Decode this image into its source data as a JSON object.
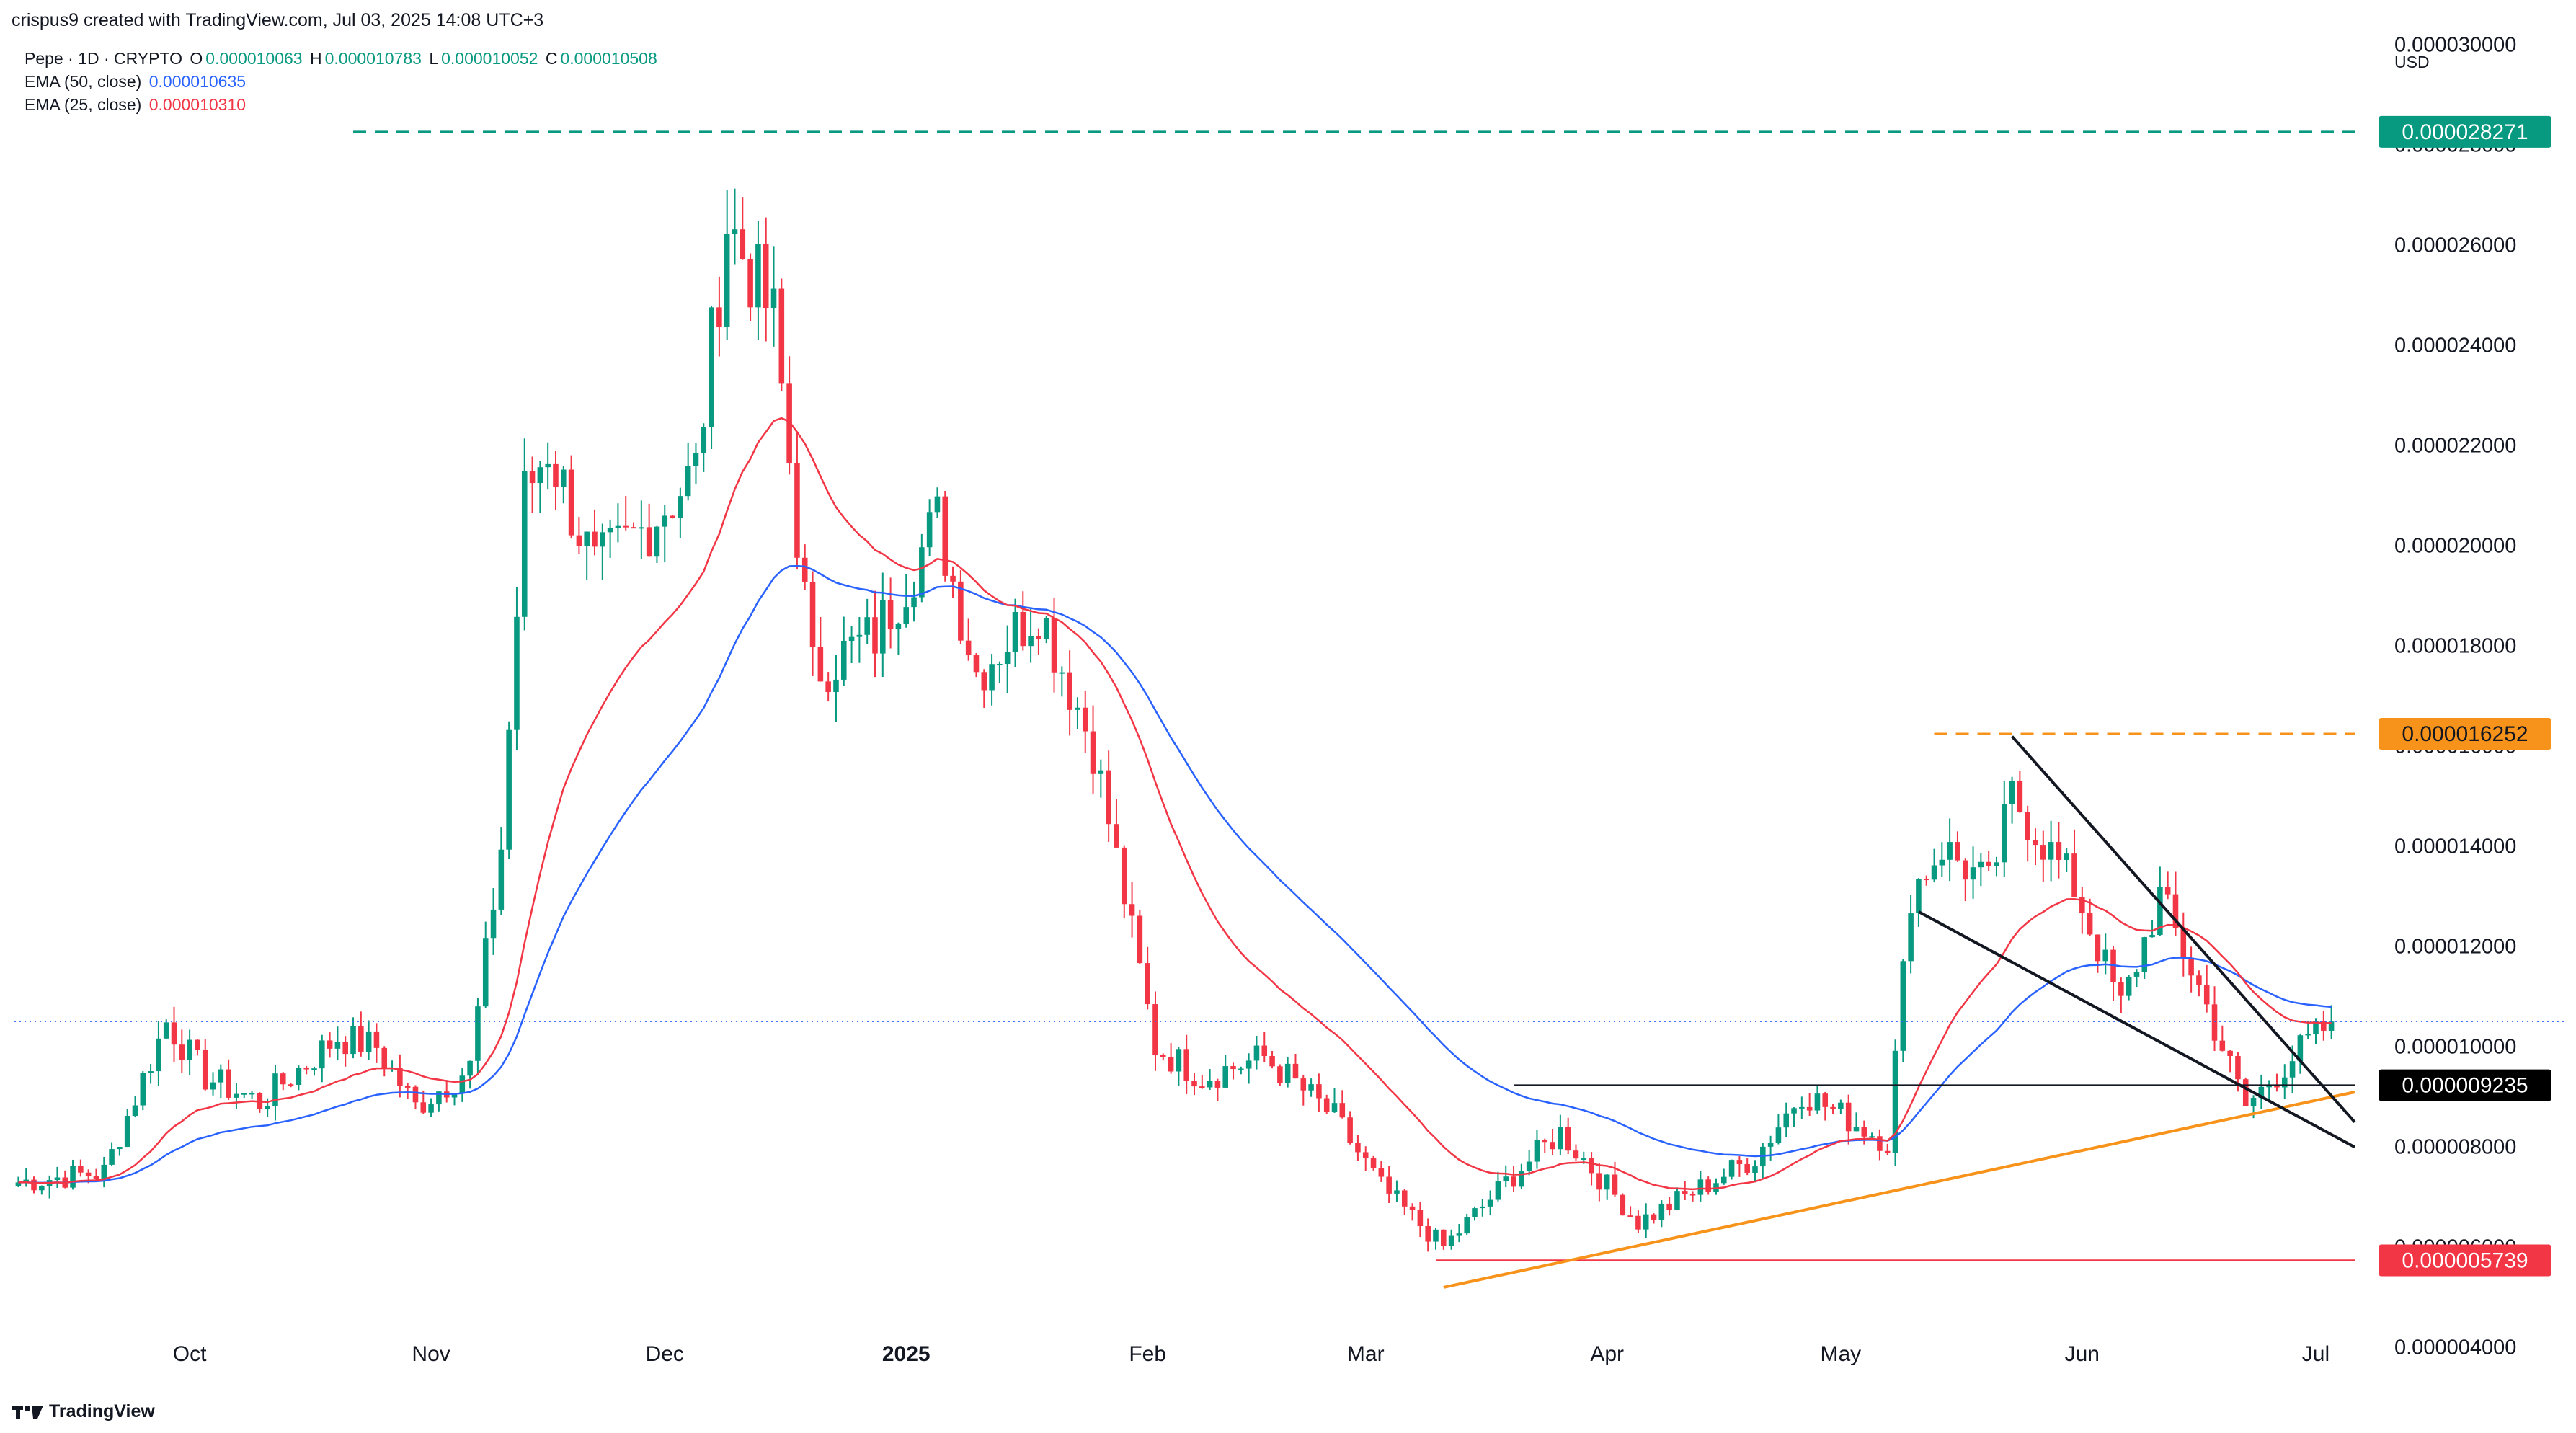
{
  "header": {
    "created_by": "crispus9 created with TradingView.com, Jul 03, 2025 14:08 UTC+3"
  },
  "legend": {
    "symbol": "Pepe · 1D · CRYPTO",
    "o_label": "O",
    "o_value": "0.000010063",
    "h_label": "H",
    "h_value": "0.000010783",
    "l_label": "L",
    "l_value": "0.000010052",
    "c_label": "C",
    "c_value": "0.000010508",
    "ema50_label": "EMA (50, close)",
    "ema50_value": "0.000010635",
    "ema25_label": "EMA (25, close)",
    "ema25_value": "0.000010310"
  },
  "footer": {
    "brand": "TradingView"
  },
  "colors": {
    "up": "#089981",
    "down": "#f23645",
    "ema50": "#2962ff",
    "ema25": "#f23645",
    "top_line": "#089981",
    "resistance": "#f7931a",
    "support_red": "#f23645",
    "trendline_orange": "#f7931a",
    "wedge": "#131722",
    "neckline": "#131722"
  },
  "chart_data": {
    "type": "candlestick",
    "currency_label": "USD",
    "ylim": [
      3.3e-06,
      3.05e-05
    ],
    "y_ticks": [
      "0.000004000",
      "0.000006000",
      "0.000008000",
      "0.000010000",
      "0.000012000",
      "0.000014000",
      "0.000016000",
      "0.000018000",
      "0.000020000",
      "0.000022000",
      "0.000024000",
      "0.000026000",
      "0.000028000",
      "0.000030000"
    ],
    "x_labels": [
      {
        "date": "2024-10-01",
        "label": "Oct",
        "bold": false
      },
      {
        "date": "2024-11-01",
        "label": "Nov",
        "bold": false
      },
      {
        "date": "2024-12-01",
        "label": "Dec",
        "bold": false
      },
      {
        "date": "2025-01-01",
        "label": "2025",
        "bold": true
      },
      {
        "date": "2025-02-01",
        "label": "Feb",
        "bold": false
      },
      {
        "date": "2025-03-01",
        "label": "Mar",
        "bold": false
      },
      {
        "date": "2025-04-01",
        "label": "Apr",
        "bold": false
      },
      {
        "date": "2025-05-01",
        "label": "May",
        "bold": false
      },
      {
        "date": "2025-06-01",
        "label": "Jun",
        "bold": false
      },
      {
        "date": "2025-07-01",
        "label": "Jul",
        "bold": false
      }
    ],
    "date_range": [
      "2024-09-09",
      "2025-07-03"
    ],
    "price_marks": [
      {
        "value": 2.8271e-05,
        "label": "0.000028271",
        "color": "#089981",
        "text_color": "#ffffff"
      },
      {
        "value": 1.6252e-05,
        "label": "0.000016252",
        "color": "#f7931a",
        "text_color": "#131722"
      },
      {
        "value": 9.235e-06,
        "label": "0.000009235",
        "color": "#000000",
        "text_color": "#ffffff"
      },
      {
        "value": 5.739e-06,
        "label": "0.000005739",
        "color": "#f23645",
        "text_color": "#ffffff"
      }
    ],
    "last_price": 1.0508e-05,
    "anchors": [
      [
        "2024-09-09",
        7.3e-06
      ],
      [
        "2024-09-20",
        7.5e-06
      ],
      [
        "2024-09-28",
        1.05e-05
      ],
      [
        "2024-10-03",
        9.4e-06
      ],
      [
        "2024-10-10",
        8.9e-06
      ],
      [
        "2024-10-20",
        1.02e-05
      ],
      [
        "2024-10-25",
        1e-05
      ],
      [
        "2024-10-30",
        8.8e-06
      ],
      [
        "2024-11-06",
        9.6e-06
      ],
      [
        "2024-11-10",
        1.4e-05
      ],
      [
        "2024-11-13",
        2.1e-05
      ],
      [
        "2024-11-16",
        2.2e-05
      ],
      [
        "2024-11-22",
        1.95e-05
      ],
      [
        "2024-11-28",
        2.03e-05
      ],
      [
        "2024-12-05",
        2.15e-05
      ],
      [
        "2024-12-09",
        2.65e-05
      ],
      [
        "2024-12-15",
        2.45e-05
      ],
      [
        "2024-12-20",
        1.75e-05
      ],
      [
        "2024-12-28",
        1.82e-05
      ],
      [
        "2025-01-05",
        2.05e-05
      ],
      [
        "2025-01-10",
        1.75e-05
      ],
      [
        "2025-01-18",
        1.88e-05
      ],
      [
        "2025-01-25",
        1.6e-05
      ],
      [
        "2025-02-02",
        1e-05
      ],
      [
        "2025-02-08",
        9.4e-06
      ],
      [
        "2025-02-16",
        9.8e-06
      ],
      [
        "2025-02-25",
        8.6e-06
      ],
      [
        "2025-03-03",
        7.2e-06
      ],
      [
        "2025-03-11",
        6e-06
      ],
      [
        "2025-03-19",
        7.3e-06
      ],
      [
        "2025-03-26",
        8.3e-06
      ],
      [
        "2025-04-05",
        6.5e-06
      ],
      [
        "2025-04-12",
        7.1e-06
      ],
      [
        "2025-04-20",
        7.8e-06
      ],
      [
        "2025-04-26",
        9.1e-06
      ],
      [
        "2025-05-07",
        8.1e-06
      ],
      [
        "2025-05-10",
        1.31e-05
      ],
      [
        "2025-05-14",
        1.4e-05
      ],
      [
        "2025-05-20",
        1.32e-05
      ],
      [
        "2025-05-23",
        1.5e-05
      ],
      [
        "2025-05-31",
        1.32e-05
      ],
      [
        "2025-06-06",
        1.08e-05
      ],
      [
        "2025-06-11",
        1.3e-05
      ],
      [
        "2025-06-16",
        1.12e-05
      ],
      [
        "2025-06-22",
        8.8e-06
      ],
      [
        "2025-06-28",
        9.8e-06
      ],
      [
        "2025-07-03",
        1.05e-05
      ]
    ],
    "indicators": [
      {
        "name": "EMA (50, close)",
        "period": 50,
        "color": "#2962ff"
      },
      {
        "name": "EMA (25, close)",
        "period": 25,
        "color": "#f23645"
      }
    ],
    "annotations": [
      {
        "type": "hline-dashed",
        "value": 2.8271e-05,
        "from": "2024-10-22",
        "color": "#089981"
      },
      {
        "type": "hline-dashed",
        "value": 1.6252e-05,
        "from": "2025-05-13",
        "color": "#f7931a"
      },
      {
        "type": "hline",
        "value": 9.235e-06,
        "from": "2025-03-20",
        "color": "#131722"
      },
      {
        "type": "hline",
        "value": 5.739e-06,
        "from": "2025-03-10",
        "color": "#f23645"
      },
      {
        "type": "line",
        "from": [
          "2025-03-11",
          5.2e-06
        ],
        "to": [
          "2025-07-06",
          9.1e-06
        ],
        "color": "#f7931a"
      },
      {
        "type": "line",
        "from": [
          "2025-05-23",
          1.62e-05
        ],
        "to": [
          "2025-07-06",
          8.5e-06
        ],
        "color": "#131722"
      },
      {
        "type": "line",
        "from": [
          "2025-05-11",
          1.27e-05
        ],
        "to": [
          "2025-07-06",
          8e-06
        ],
        "color": "#131722"
      }
    ]
  }
}
